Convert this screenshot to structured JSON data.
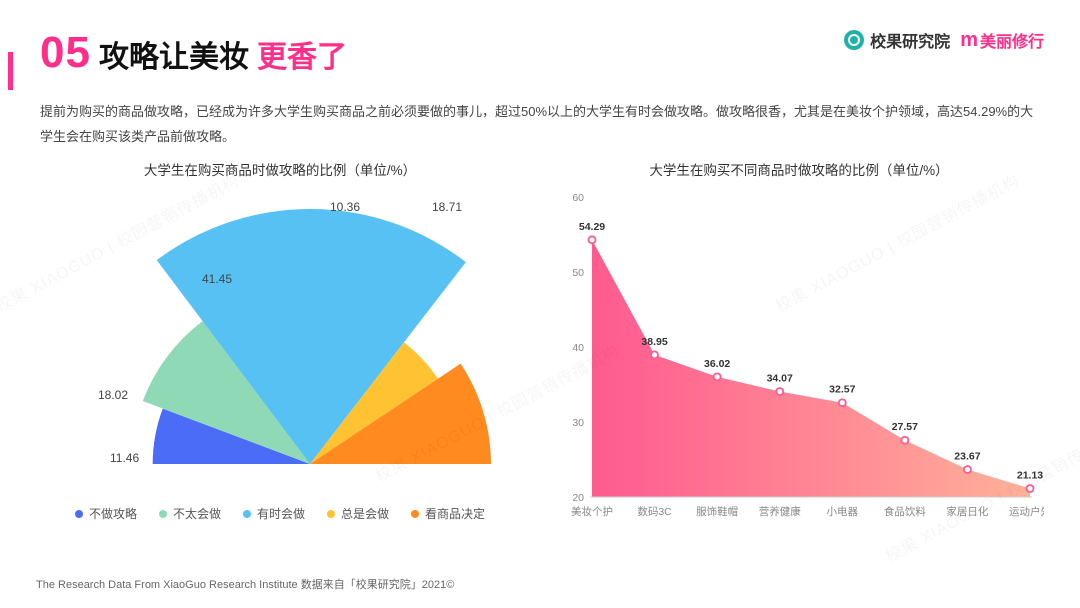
{
  "header": {
    "number": "05",
    "number_color": "#ff2e8a",
    "title_black": "攻略让美妆",
    "title_accent": "更香了",
    "accent_color": "#ff2e8a"
  },
  "logos": {
    "logo1_text": "校果研究院",
    "logo1_color": "#333333",
    "logo1_ico_bg": "#1fb3a6",
    "logo2_m": "m",
    "logo2_text": "美丽修行",
    "logo2_color": "#ff2e8a"
  },
  "description": "提前为购买的商品做攻略，已经成为许多大学生购买商品之前必须要做的事儿，超过50%以上的大学生有时会做攻略。做攻略很香，尤其是在美妆个护领域，高达54.29%的大学生会在购买该类产品前做攻略。",
  "pie_chart": {
    "title": "大学生在购买商品时做攻略的比例（单位/%）",
    "background": "#ffffff",
    "slices": [
      {
        "label": "不做攻略",
        "value": 11.46,
        "color": "#4a6cf7"
      },
      {
        "label": "不太会做",
        "value": 18.02,
        "color": "#8fd9b6"
      },
      {
        "label": "有时会做",
        "value": 41.45,
        "color": "#56c1f2"
      },
      {
        "label": "总是会做",
        "value": 10.36,
        "color": "#ffc233"
      },
      {
        "label": "看商品决定",
        "value": 18.71,
        "color": "#ff8a1f"
      }
    ],
    "label_fontsize": 12,
    "label_color": "#444444"
  },
  "area_chart": {
    "title": "大学生在购买不同商品时做攻略的比例（单位/%）",
    "categories": [
      "美妆个护",
      "数码3C",
      "服饰鞋帽",
      "营养健康",
      "小电器",
      "食品饮料",
      "家居日化",
      "运动户外"
    ],
    "values": [
      54.29,
      38.95,
      36.02,
      34.07,
      32.57,
      27.57,
      23.67,
      21.13
    ],
    "ylim": [
      20,
      60
    ],
    "ytick_step": 10,
    "yticks": [
      20,
      30,
      40,
      50,
      60
    ],
    "fill_start": "#ff5a8f",
    "fill_end": "#ffb199",
    "marker_color": "#ffffff",
    "marker_border": "#ff5a8f",
    "label_fontsize": 10.5,
    "axis_color": "#cccccc",
    "tick_color": "#888888",
    "grid_color": "#eeeeee",
    "background": "#ffffff",
    "point_label_color": "#333333"
  },
  "footer": "The Research Data From XiaoGuo Research Institute 数据来自「校果研究院」2021©",
  "watermark_text": "校果 XIAOGUO | 校园营销传播机构"
}
